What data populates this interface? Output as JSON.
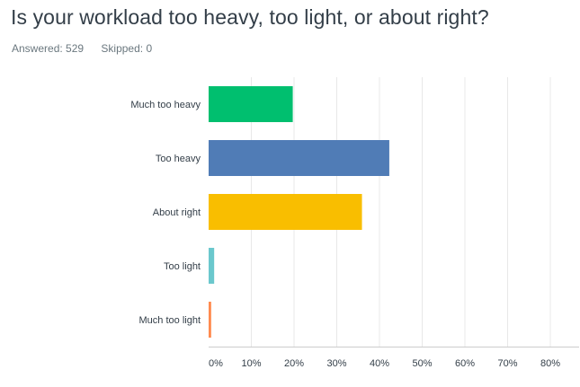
{
  "question": {
    "title": "Is your workload too heavy, too light, or about right?"
  },
  "stats": {
    "answered_label": "Answered: 529",
    "skipped_label": "Skipped: 0"
  },
  "chart_data": {
    "type": "bar",
    "orientation": "horizontal",
    "categories": [
      "Much too heavy",
      "Too heavy",
      "About right",
      "Too light",
      "Much too light"
    ],
    "values": [
      19.7,
      42.3,
      35.9,
      1.3,
      0.6
    ],
    "colors": [
      "#00bf6f",
      "#507cb6",
      "#f9be00",
      "#6bc8cd",
      "#ff8b4f"
    ],
    "x_ticks": [
      "0%",
      "10%",
      "20%",
      "30%",
      "40%",
      "50%",
      "60%",
      "70%",
      "80%"
    ],
    "xlim": [
      0,
      85
    ],
    "grid": true,
    "grid_color": "#e8e8e8",
    "axis_color": "#cccccc",
    "title": "",
    "xlabel": "",
    "ylabel": ""
  }
}
